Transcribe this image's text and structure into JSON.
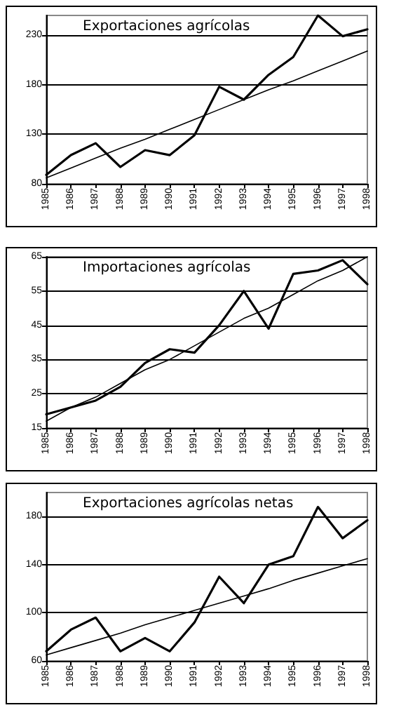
{
  "chart_data": [
    {
      "type": "line",
      "title": "Exportaciones agrícolas",
      "categories": [
        "1985",
        "1986",
        "1987",
        "1988",
        "1989",
        "1990",
        "1991",
        "1992",
        "1993",
        "1994",
        "1995",
        "1996",
        "1997",
        "1998"
      ],
      "series": [
        {
          "color": "#000000",
          "values": [
            89,
            109,
            121,
            97,
            114,
            109,
            129,
            178,
            165,
            190,
            208,
            250,
            229,
            236
          ]
        },
        {
          "color": "#000000",
          "values": [
            86,
            96,
            106,
            116,
            125,
            135,
            145,
            155,
            165,
            175,
            184,
            194,
            204,
            214
          ]
        }
      ],
      "ylim": [
        80,
        250
      ],
      "yticks": [
        80,
        130,
        180,
        230
      ],
      "grid": "y",
      "marker": "none",
      "line_style": "solid"
    },
    {
      "type": "line",
      "title": "Importaciones agrícolas",
      "categories": [
        "1985",
        "1986",
        "1987",
        "1988",
        "1989",
        "1990",
        "1991",
        "1992",
        "1993",
        "1994",
        "1995",
        "1996",
        "1997",
        "1998"
      ],
      "series": [
        {
          "color": "#000000",
          "values": [
            19,
            21,
            23,
            27,
            34,
            38,
            37,
            45,
            55,
            44,
            60,
            61,
            64,
            57
          ]
        },
        {
          "color": "#000000",
          "values": [
            17,
            21,
            24,
            28,
            32,
            35,
            39,
            43,
            47,
            50,
            54,
            58,
            61,
            65
          ]
        }
      ],
      "ylim": [
        15,
        65
      ],
      "yticks": [
        15,
        25,
        35,
        45,
        55,
        65
      ],
      "grid": "y",
      "marker": "none",
      "line_style": "solid"
    },
    {
      "type": "line",
      "title": "Exportaciones agrícolas netas",
      "categories": [
        "1985",
        "1986",
        "1987",
        "1988",
        "1989",
        "1990",
        "1991",
        "1992",
        "1993",
        "1994",
        "1995",
        "1996",
        "1997",
        "1998"
      ],
      "series": [
        {
          "color": "#000000",
          "values": [
            68,
            86,
            96,
            68,
            79,
            68,
            92,
            130,
            108,
            140,
            147,
            188,
            162,
            177
          ]
        },
        {
          "color": "#000000",
          "values": [
            65,
            71,
            77,
            83,
            90,
            96,
            102,
            108,
            114,
            120,
            127,
            133,
            139,
            145
          ]
        }
      ],
      "ylim": [
        60,
        200
      ],
      "yticks": [
        60,
        100,
        140,
        180
      ],
      "grid": "y",
      "marker": "none",
      "line_style": "solid"
    }
  ]
}
